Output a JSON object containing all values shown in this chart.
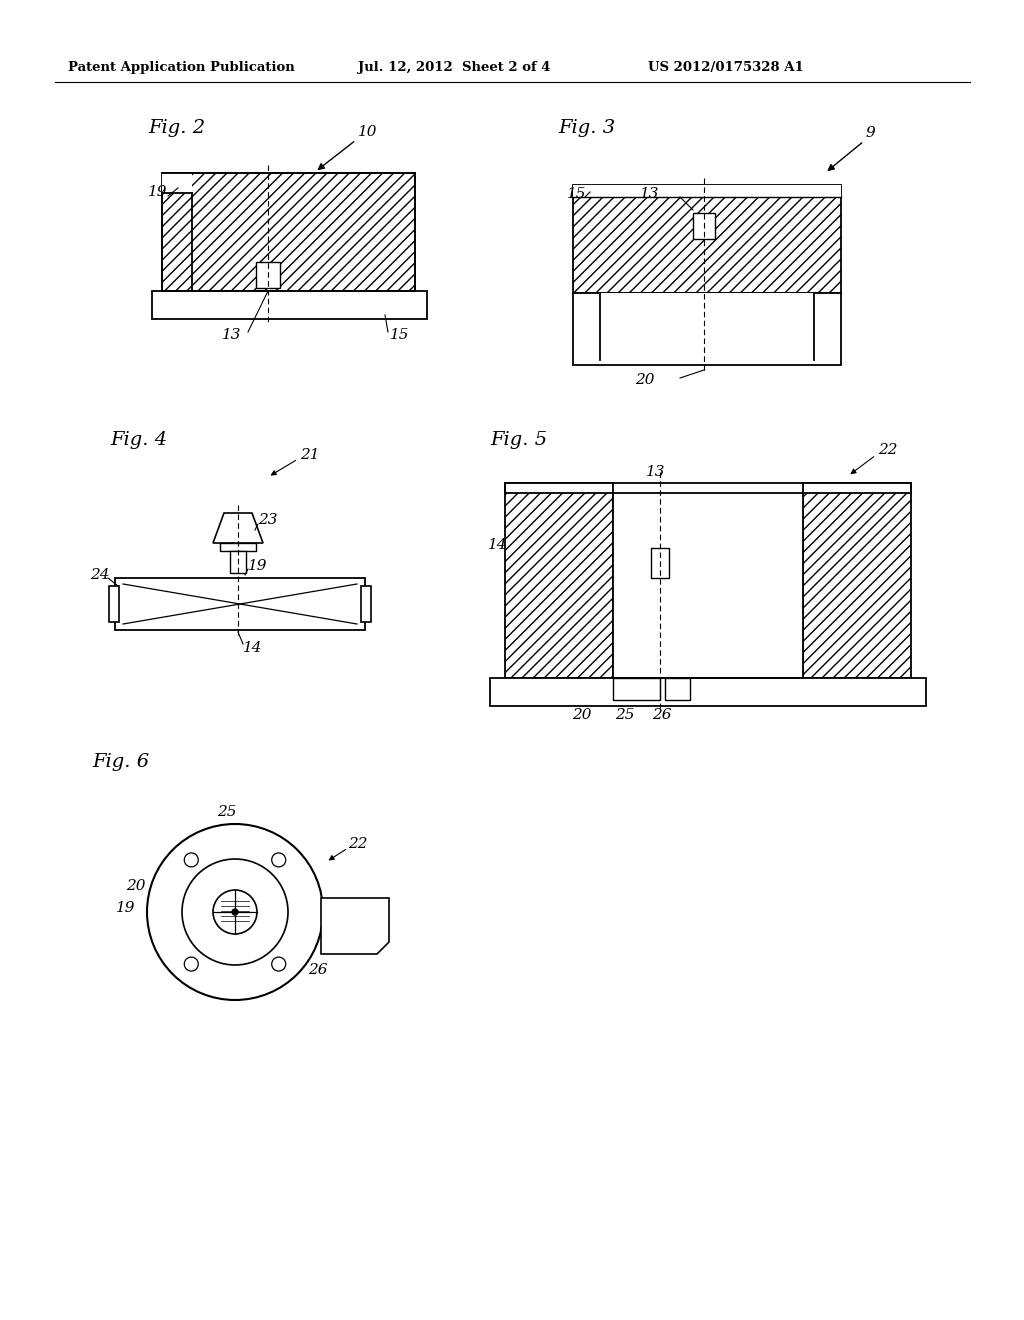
{
  "bg_color": "#ffffff",
  "header_left": "Patent Application Publication",
  "header_mid": "Jul. 12, 2012  Sheet 2 of 4",
  "header_right": "US 2012/0175328 A1",
  "line_color": "#000000"
}
